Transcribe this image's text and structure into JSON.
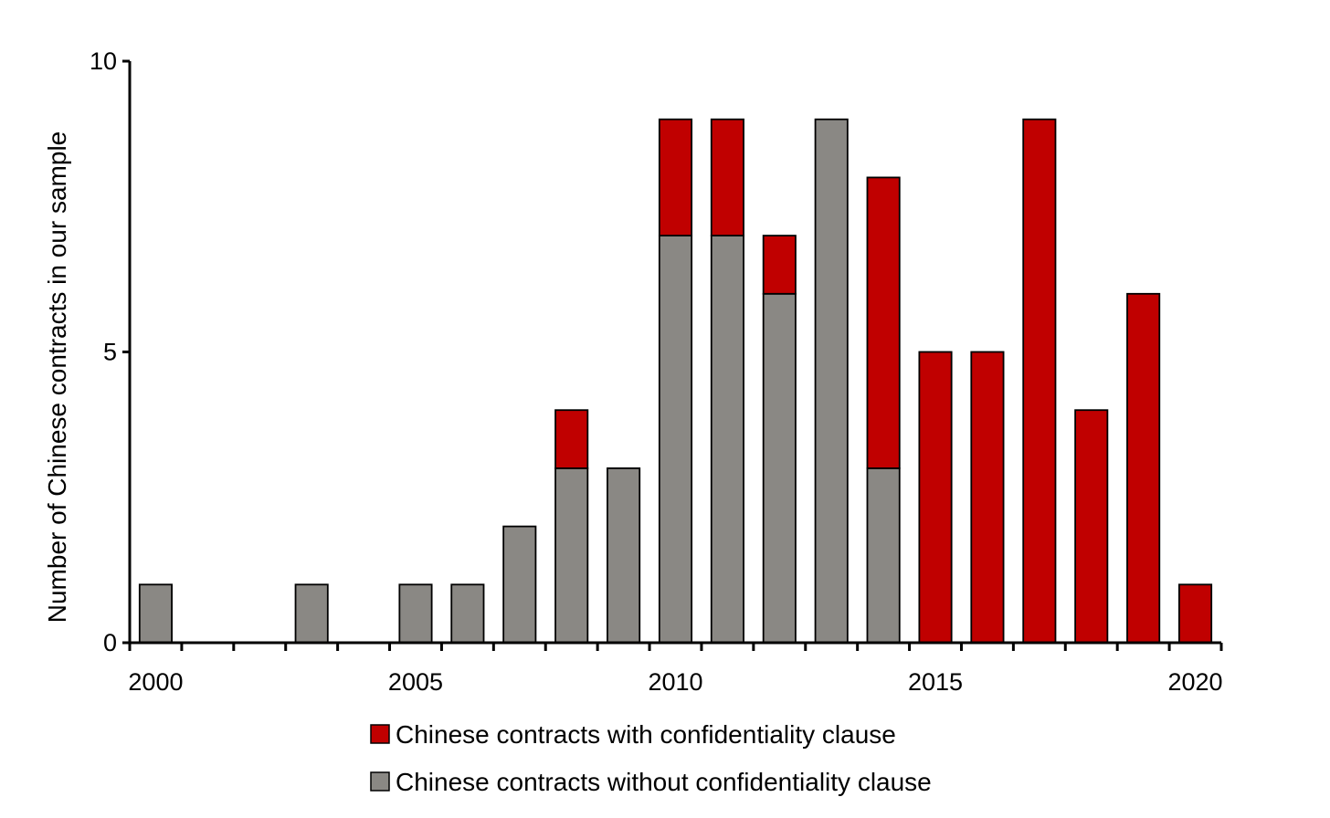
{
  "chart_data": {
    "type": "bar",
    "stacked": true,
    "title": "",
    "xlabel": "",
    "ylabel": "Number of Chinese contracts in our sample",
    "ylim": [
      0,
      10
    ],
    "yticks": [
      0,
      5,
      10
    ],
    "xtick_labels": [
      "2000",
      "2005",
      "2010",
      "2015",
      "2020"
    ],
    "categories": [
      "2000",
      "2001",
      "2002",
      "2003",
      "2004",
      "2005",
      "2006",
      "2007",
      "2008",
      "2009",
      "2010",
      "2011",
      "2012",
      "2013",
      "2014",
      "2015",
      "2016",
      "2017",
      "2018",
      "2019",
      "2020"
    ],
    "series": [
      {
        "name": "Chinese contracts without confidentiality clause",
        "color": "#8a8884",
        "values": [
          1,
          0,
          0,
          1,
          0,
          1,
          1,
          2,
          3,
          3,
          7,
          7,
          6,
          9,
          3,
          0,
          0,
          0,
          0,
          0,
          0
        ]
      },
      {
        "name": "Chinese contracts with confidentiality clause",
        "color": "#c00000",
        "values": [
          0,
          0,
          0,
          0,
          0,
          0,
          0,
          0,
          1,
          0,
          2,
          2,
          1,
          0,
          5,
          5,
          5,
          9,
          4,
          6,
          1
        ]
      }
    ],
    "legend": {
      "position": "bottom",
      "entries": [
        "Chinese contracts with confidentiality clause",
        "Chinese contracts without confidentiality clause"
      ]
    }
  }
}
